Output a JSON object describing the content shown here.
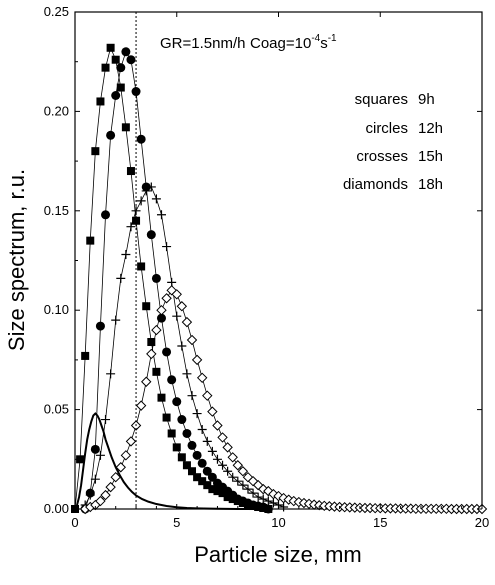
{
  "chart_data": {
    "type": "scatter",
    "title": "",
    "xlabel": "Particle size, mm",
    "ylabel": "Size spectrum, r.u.",
    "xlim": [
      0,
      20
    ],
    "ylim": [
      0,
      0.25
    ],
    "x_ticks": [
      0,
      5,
      10,
      15,
      20
    ],
    "y_ticks": [
      0.0,
      0.05,
      0.1,
      0.15,
      0.2,
      0.25
    ],
    "x_tick_labels": [
      "0",
      "5",
      "10",
      "15",
      "20"
    ],
    "y_tick_labels": [
      "0.00",
      "0.05",
      "0.10",
      "0.15",
      "0.20",
      "0.25"
    ],
    "grid": false,
    "annotation": {
      "gr_text": "GR=1.5nm/h",
      "coag_prefix": "Coag=10",
      "coag_exponent": "-4",
      "coag_suffix": "s",
      "coag_unit_exponent": "-1"
    },
    "reference_line": {
      "x": 3,
      "style": "dotted"
    },
    "legend": [
      {
        "label": "squares",
        "value": "9h"
      },
      {
        "label": "circles",
        "value": "12h"
      },
      {
        "label": "crosses",
        "value": "15h"
      },
      {
        "label": "diamonds",
        "value": "18h"
      }
    ],
    "series": [
      {
        "marker": "none",
        "x": [
          0,
          0.1,
          0.2,
          0.3,
          0.4,
          0.5,
          0.6,
          0.7,
          0.8,
          0.9,
          1.0,
          1.1,
          1.2,
          1.3,
          1.4,
          1.5,
          1.6,
          1.8,
          2.0,
          2.2,
          2.4,
          2.6,
          2.8,
          3.0,
          3.3,
          3.6,
          4.0,
          4.5,
          5.0,
          5.5,
          6.0,
          7.0,
          8.0,
          9.0
        ],
        "y": [
          0.0,
          0.002,
          0.006,
          0.012,
          0.02,
          0.028,
          0.035,
          0.04,
          0.044,
          0.047,
          0.048,
          0.047,
          0.045,
          0.042,
          0.039,
          0.035,
          0.032,
          0.026,
          0.021,
          0.017,
          0.0135,
          0.0108,
          0.0086,
          0.0068,
          0.005,
          0.0037,
          0.0025,
          0.0015,
          0.0009,
          0.0005,
          0.0003,
          0.0001,
          3e-05,
          0.0
        ]
      },
      {
        "marker": "square",
        "x": [
          0,
          0.25,
          0.5,
          0.75,
          1.0,
          1.25,
          1.5,
          1.75,
          2.0,
          2.25,
          2.5,
          2.75,
          3.0,
          3.25,
          3.5,
          3.75,
          4.0,
          4.25,
          4.5,
          4.75,
          5.0,
          5.25,
          5.5,
          5.75,
          6.0,
          6.25,
          6.5,
          6.75,
          7.0,
          7.25,
          7.5,
          7.75,
          8.0,
          8.25,
          8.5,
          8.75,
          9.0,
          9.25,
          9.5
        ],
        "y": [
          0.0,
          0.025,
          0.077,
          0.135,
          0.18,
          0.205,
          0.222,
          0.232,
          0.226,
          0.212,
          0.192,
          0.17,
          0.145,
          0.122,
          0.102,
          0.084,
          0.069,
          0.056,
          0.046,
          0.038,
          0.031,
          0.026,
          0.022,
          0.019,
          0.016,
          0.014,
          0.012,
          0.01,
          0.009,
          0.008,
          0.006,
          0.005,
          0.004,
          0.003,
          0.002,
          0.0015,
          0.001,
          0.0005,
          0.0
        ]
      },
      {
        "marker": "circle",
        "x": [
          0.5,
          0.75,
          1.0,
          1.25,
          1.5,
          1.75,
          2.0,
          2.25,
          2.5,
          2.75,
          3.0,
          3.25,
          3.5,
          3.75,
          4.0,
          4.25,
          4.5,
          4.75,
          5.0,
          5.25,
          5.5,
          5.75,
          6.0,
          6.25,
          6.5,
          6.75,
          7.0,
          7.25,
          7.5,
          7.75,
          8.0,
          8.25,
          8.5,
          8.75,
          9.0,
          9.25,
          9.5
        ],
        "y": [
          0.0,
          0.008,
          0.03,
          0.092,
          0.148,
          0.188,
          0.208,
          0.222,
          0.23,
          0.226,
          0.21,
          0.186,
          0.162,
          0.138,
          0.116,
          0.096,
          0.079,
          0.065,
          0.054,
          0.045,
          0.038,
          0.032,
          0.027,
          0.023,
          0.019,
          0.016,
          0.013,
          0.011,
          0.009,
          0.007,
          0.005,
          0.004,
          0.003,
          0.002,
          0.0015,
          0.001,
          0.0
        ]
      },
      {
        "marker": "cross",
        "x": [
          0.5,
          0.75,
          1.0,
          1.25,
          1.5,
          1.75,
          2.0,
          2.25,
          2.5,
          2.75,
          3.0,
          3.25,
          3.5,
          3.75,
          4.0,
          4.25,
          4.5,
          4.75,
          5.0,
          5.25,
          5.5,
          5.75,
          6.0,
          6.25,
          6.5,
          6.75,
          7.0,
          7.25,
          7.5,
          7.75,
          8.0,
          8.25,
          8.5,
          8.75,
          9.0,
          9.25,
          9.5,
          9.75,
          10.0,
          10.25
        ],
        "y": [
          0.002,
          0.007,
          0.015,
          0.027,
          0.045,
          0.068,
          0.095,
          0.116,
          0.128,
          0.142,
          0.15,
          0.155,
          0.16,
          0.162,
          0.156,
          0.148,
          0.132,
          0.114,
          0.097,
          0.082,
          0.068,
          0.057,
          0.048,
          0.04,
          0.034,
          0.029,
          0.025,
          0.022,
          0.019,
          0.016,
          0.014,
          0.012,
          0.01,
          0.008,
          0.006,
          0.005,
          0.004,
          0.003,
          0.002,
          0.001
        ]
      },
      {
        "marker": "diamond",
        "x": [
          0.5,
          0.75,
          1.0,
          1.25,
          1.5,
          1.75,
          2.0,
          2.25,
          2.5,
          2.75,
          3.0,
          3.25,
          3.5,
          3.75,
          4.0,
          4.25,
          4.5,
          4.75,
          5.0,
          5.25,
          5.5,
          5.75,
          6.0,
          6.25,
          6.5,
          6.75,
          7.0,
          7.25,
          7.5,
          7.75,
          8.0,
          8.25,
          8.5,
          8.75,
          9.0,
          9.25,
          9.5,
          9.75,
          10.0,
          10.25,
          10.5,
          10.75,
          11.0,
          11.25,
          11.5,
          11.75,
          12.0,
          12.25,
          12.5,
          12.75,
          13.0,
          13.25,
          13.5,
          13.75,
          14.0,
          14.25,
          14.5,
          14.75,
          15.0,
          15.25,
          15.5,
          15.75,
          16.0,
          16.25,
          16.5,
          16.75,
          17.0,
          17.25,
          17.5,
          17.75,
          18.0,
          18.25,
          18.5,
          18.75,
          19.0,
          19.25,
          19.5,
          19.75,
          20.0
        ],
        "y": [
          0.0,
          0.001,
          0.002,
          0.004,
          0.007,
          0.011,
          0.016,
          0.021,
          0.027,
          0.034,
          0.042,
          0.052,
          0.064,
          0.078,
          0.09,
          0.1,
          0.106,
          0.11,
          0.108,
          0.102,
          0.094,
          0.085,
          0.075,
          0.066,
          0.057,
          0.049,
          0.042,
          0.036,
          0.031,
          0.026,
          0.022,
          0.019,
          0.016,
          0.014,
          0.012,
          0.01,
          0.009,
          0.0075,
          0.0065,
          0.0055,
          0.0047,
          0.004,
          0.0035,
          0.003,
          0.0026,
          0.0022,
          0.0019,
          0.0016,
          0.0014,
          0.0012,
          0.001,
          0.0009,
          0.0008,
          0.0007,
          0.0006,
          0.0005,
          0.0005,
          0.0004,
          0.0004,
          0.0003,
          0.0003,
          0.0003,
          0.0002,
          0.0002,
          0.0002,
          0.0001,
          0.0001,
          0.0001,
          0.0001,
          0.0001,
          0.0001,
          0.0001,
          0.0,
          0.0,
          0.0,
          0.0,
          0.0,
          0.0,
          0.0
        ]
      }
    ]
  }
}
